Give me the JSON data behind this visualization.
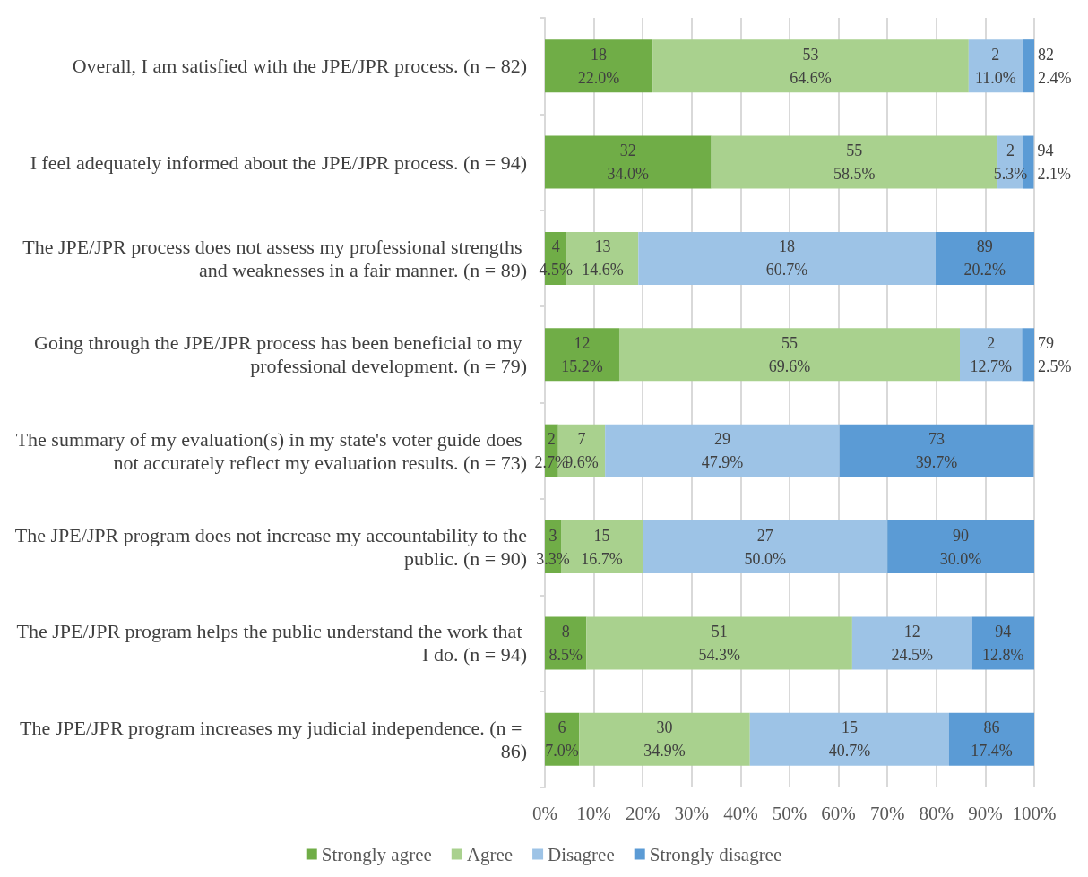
{
  "chart_data": {
    "type": "bar",
    "orientation": "horizontal",
    "stacked": true,
    "categories": [
      "Overall, I am satisfied with the JPE/JPR process. (n = 82)",
      "I feel adequately informed about the JPE/JPR process. (n = 94)",
      "The JPE/JPR process does not assess my professional strengths and weaknesses in a fair manner. (n = 89)",
      "Going through the JPE/JPR process has been beneficial to my professional development. (n = 79)",
      "The summary of my evaluation(s) in my state's voter guide does not accurately reflect my evaluation results. (n = 73)",
      "The JPE/JPR program does not increase my accountability to the public. (n = 90)",
      "The JPE/JPR program helps the public understand the work that I do. (n = 94)",
      "The JPE/JPR program increases my judicial independence. (n = 86)"
    ],
    "series": [
      {
        "name": "Strongly agree",
        "color": "#70ad47",
        "values": [
          22.0,
          34.0,
          4.5,
          15.2,
          2.7,
          3.3,
          8.5,
          7.0
        ],
        "value_labels": [
          "18\n22.0%",
          "32\n34.0%",
          "4\n4.5%",
          "12\n15.2%",
          "2\n2.7%",
          "3\n3.3%",
          "8\n8.5%",
          "6\n7.0%"
        ]
      },
      {
        "name": "Agree",
        "color": "#a9d18e",
        "values": [
          64.6,
          58.5,
          14.6,
          69.6,
          9.6,
          16.7,
          54.3,
          34.9
        ],
        "value_labels": [
          "53\n64.6%",
          "55\n58.5%",
          "13\n14.6%",
          "55\n69.6%",
          "7\n9.6%",
          "15\n16.7%",
          "51\n54.3%",
          "30\n34.9%"
        ]
      },
      {
        "name": "Disagree",
        "color": "#9dc3e6",
        "values": [
          11.0,
          5.3,
          60.7,
          12.7,
          47.9,
          50.0,
          24.5,
          40.7
        ],
        "value_labels": [
          "2\n11.0%",
          "2\n5.3%",
          "18\n60.7%",
          "2\n12.7%",
          "29\n47.9%",
          "27\n50.0%",
          "12\n24.5%",
          "15\n40.7%"
        ]
      },
      {
        "name": "Strongly disagree",
        "color": "#5b9bd5",
        "values": [
          2.4,
          2.1,
          20.2,
          2.5,
          39.7,
          30.0,
          12.8,
          17.4
        ],
        "value_labels": [
          "82\n2.4%",
          "94\n2.1%",
          "89\n20.2%",
          "79\n2.5%",
          "73\n39.7%",
          "90\n30.0%",
          "94\n12.8%",
          "86\n17.4%"
        ]
      }
    ],
    "xlim": [
      0,
      100
    ],
    "xticks": [
      {
        "value": 0,
        "label": "0%"
      },
      {
        "value": 10,
        "label": "10%"
      },
      {
        "value": 20,
        "label": "20%"
      },
      {
        "value": 30,
        "label": "30%"
      },
      {
        "value": 40,
        "label": "40%"
      },
      {
        "value": 50,
        "label": "50%"
      },
      {
        "value": 60,
        "label": "60%"
      },
      {
        "value": 70,
        "label": "70%"
      },
      {
        "value": 80,
        "label": "80%"
      },
      {
        "value": 90,
        "label": "90%"
      },
      {
        "value": 100,
        "label": "100%"
      }
    ],
    "grid": "x",
    "legend": "bottom"
  }
}
